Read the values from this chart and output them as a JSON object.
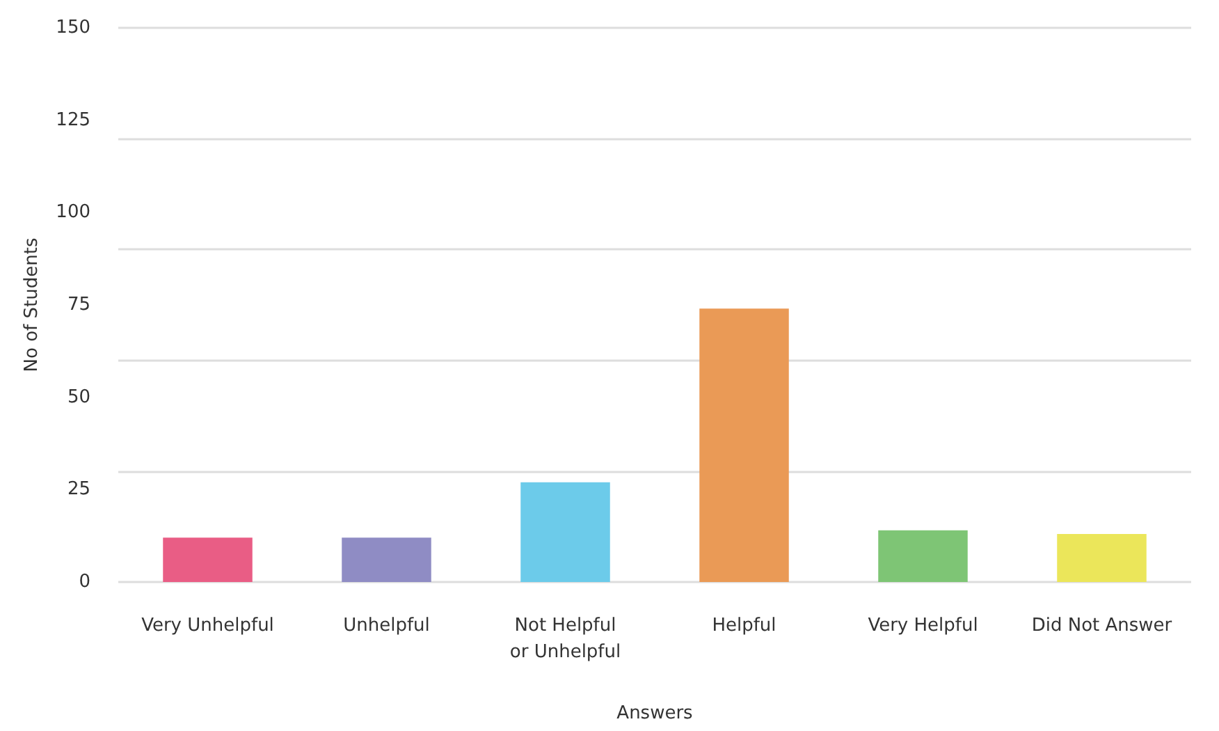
{
  "chart_data": {
    "type": "bar",
    "xlabel": "Answers",
    "ylabel": "No of Students",
    "categories": [
      "Very Unhelpful",
      "Unhelpful",
      "Not Helpful\nor Unhelpful",
      "Helpful",
      "Very Helpful",
      "Did Not Answer"
    ],
    "values": [
      12,
      12,
      27,
      74,
      14,
      13
    ],
    "colors": [
      "#e95d85",
      "#8f8cc4",
      "#6ccbea",
      "#ea9a56",
      "#7ec575",
      "#ebe65a"
    ],
    "ylim": [
      0,
      150
    ],
    "yticks": [
      0,
      25,
      50,
      75,
      100,
      125,
      150
    ],
    "grid": "y"
  }
}
